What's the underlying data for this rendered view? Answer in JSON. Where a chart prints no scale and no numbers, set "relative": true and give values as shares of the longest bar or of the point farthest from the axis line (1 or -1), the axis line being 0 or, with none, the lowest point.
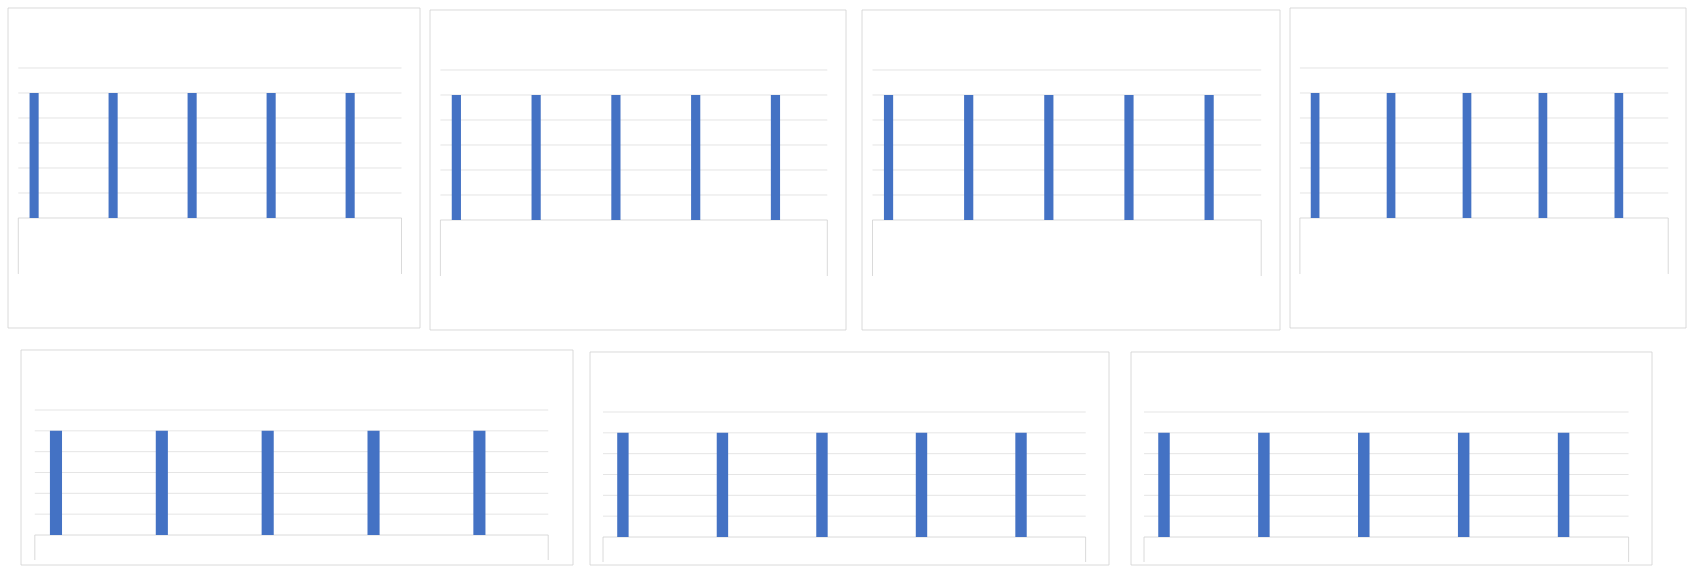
{
  "chart_data": [
    {
      "type": "bar",
      "categories": [
        null,
        null,
        null,
        null,
        null
      ],
      "values": [
        1,
        1,
        1,
        1,
        1
      ],
      "color": "#4472c4",
      "relative": true,
      "grid": "y"
    },
    {
      "type": "bar",
      "categories": [
        null,
        null,
        null,
        null,
        null
      ],
      "values": [
        1,
        1,
        1,
        1,
        1
      ],
      "color": "#4472c4",
      "relative": true,
      "grid": "y"
    },
    {
      "type": "bar",
      "categories": [
        null,
        null,
        null,
        null,
        null
      ],
      "values": [
        1,
        1,
        1,
        1,
        1
      ],
      "color": "#4472c4",
      "relative": true,
      "grid": "y"
    },
    {
      "type": "bar",
      "categories": [
        null,
        null,
        null,
        null,
        null
      ],
      "values": [
        1,
        1,
        1,
        1,
        1
      ],
      "color": "#4472c4",
      "relative": true,
      "grid": "y"
    },
    {
      "type": "bar",
      "categories": [
        null,
        null,
        null,
        null,
        null
      ],
      "values": [
        1,
        1,
        1,
        1,
        1
      ],
      "color": "#4472c4",
      "relative": true,
      "grid": "y"
    },
    {
      "type": "bar",
      "categories": [
        null,
        null,
        null,
        null,
        null
      ],
      "values": [
        1,
        1,
        1,
        1,
        1
      ],
      "color": "#4472c4",
      "relative": true,
      "grid": "y"
    },
    {
      "type": "bar",
      "categories": [
        null,
        null,
        null,
        null,
        null
      ],
      "values": [
        1,
        1,
        1,
        1,
        1
      ],
      "color": "#4472c4",
      "relative": true,
      "grid": "y"
    }
  ]
}
